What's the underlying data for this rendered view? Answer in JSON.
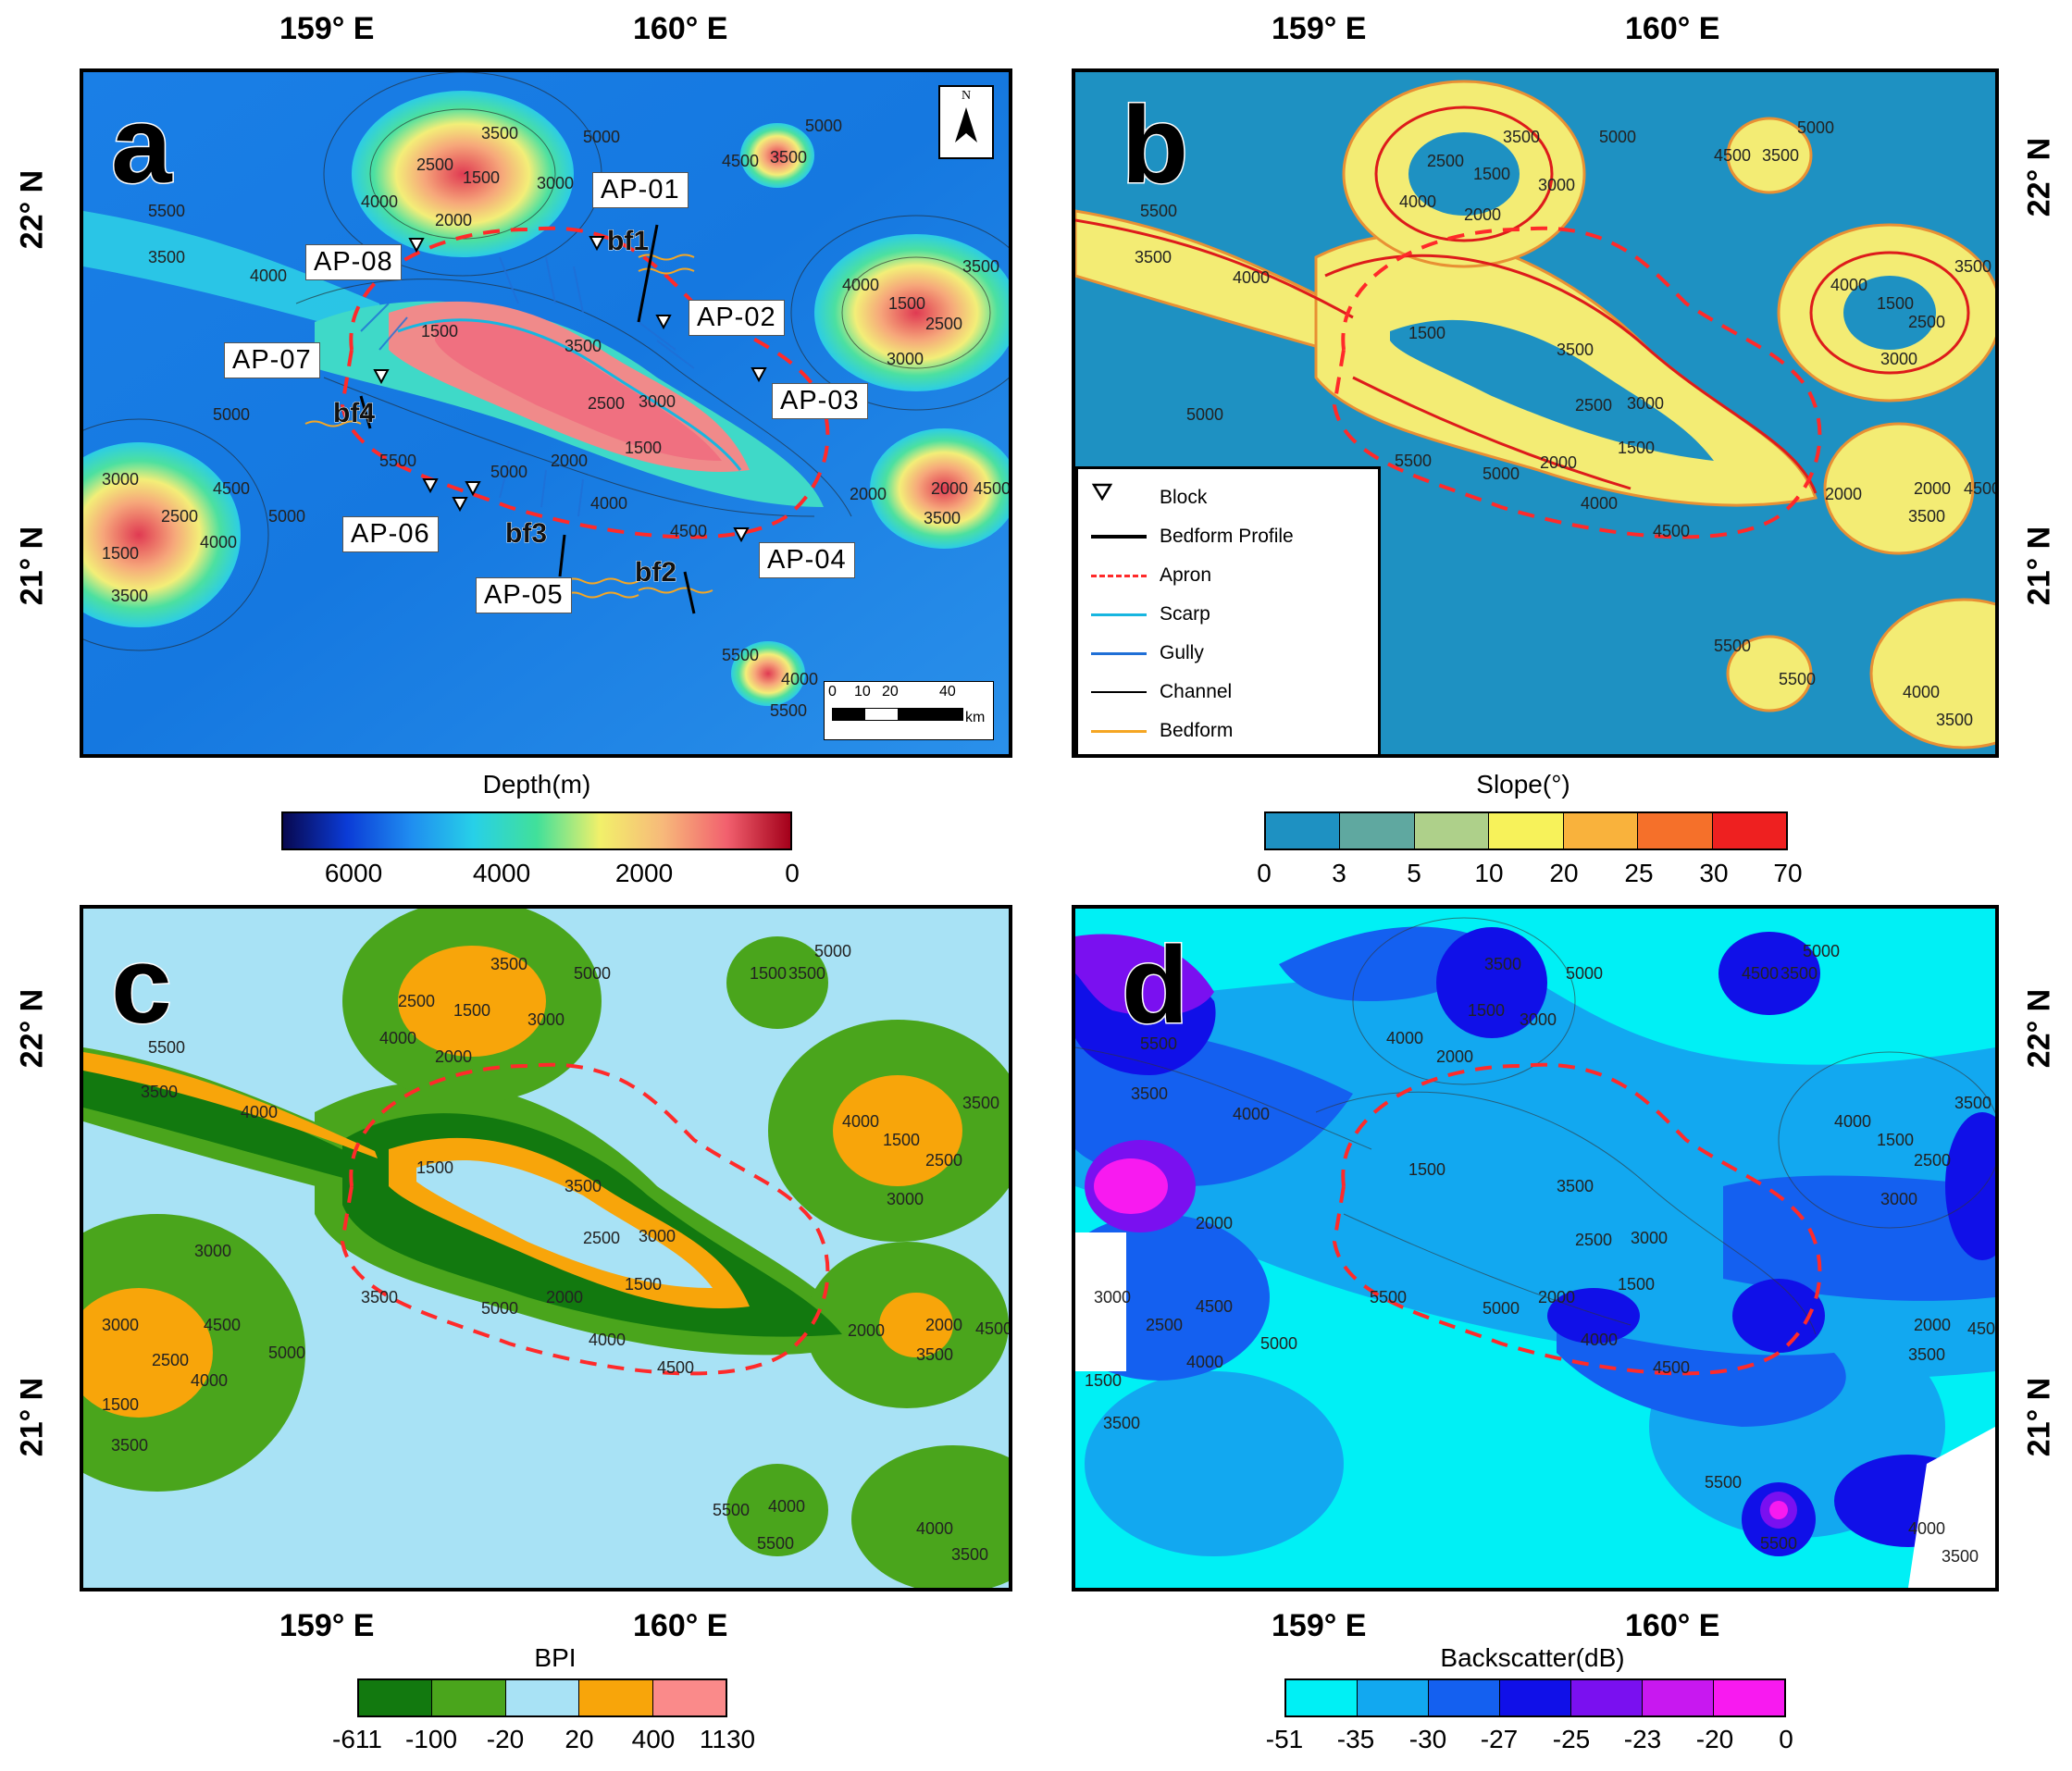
{
  "coords": {
    "lon1": "159° E",
    "lon2": "160° E",
    "lat1": "22° N",
    "lat2": "21° N"
  },
  "panels": {
    "a": {
      "label": "a"
    },
    "b": {
      "label": "b"
    },
    "c": {
      "label": "c"
    },
    "d": {
      "label": "d"
    }
  },
  "sites": {
    "ap01": "AP-01",
    "ap02": "AP-02",
    "ap03": "AP-03",
    "ap04": "AP-04",
    "ap05": "AP-05",
    "ap06": "AP-06",
    "ap07": "AP-07",
    "ap08": "AP-08"
  },
  "bedforms": {
    "bf1": "bf1",
    "bf2": "bf2",
    "bf3": "bf3",
    "bf4": "bf4"
  },
  "north_arrow": {
    "letter": "N"
  },
  "scale_bar": {
    "t0": "0",
    "t1": "10",
    "t2": "20",
    "t3": "40",
    "unit": "km"
  },
  "contours": {
    "c5500": "5500",
    "c5000": "5000",
    "c4500": "4500",
    "c4000": "4000",
    "c3500": "3500",
    "c3000": "3000",
    "c2500": "2500",
    "c2000": "2000",
    "c1500": "1500"
  },
  "legend": {
    "items": [
      {
        "label": "Block",
        "symbol": "triangle"
      },
      {
        "label": "Bedform Profile",
        "symbol": "thick-line",
        "color": "#000000"
      },
      {
        "label": "Apron",
        "symbol": "dashed-line",
        "color": "#ff2a2a"
      },
      {
        "label": "Scarp",
        "symbol": "line",
        "color": "#17b6e0"
      },
      {
        "label": "Gully",
        "symbol": "line",
        "color": "#1f6fd6"
      },
      {
        "label": "Channel",
        "symbol": "thin-line",
        "color": "#000000"
      },
      {
        "label": "Bedform",
        "symbol": "line",
        "color": "#f5a623"
      }
    ]
  },
  "colorbars": {
    "depth": {
      "title": "Depth(m)",
      "ticks": [
        "6000",
        "4000",
        "2000",
        "0"
      ],
      "colors": [
        "#08084f",
        "#0b3bd6",
        "#1f8cf0",
        "#27d0e8",
        "#41e09a",
        "#f2f06a",
        "#f7b87a",
        "#f2606e",
        "#a3001a"
      ]
    },
    "slope": {
      "title": "Slope(°)",
      "ticks": [
        "0",
        "3",
        "5",
        "10",
        "20",
        "25",
        "30",
        "70"
      ],
      "colors": [
        "#1e91c2",
        "#5fa8a0",
        "#aed08a",
        "#f7f25a",
        "#f9b23c",
        "#f5702a",
        "#ee2020"
      ]
    },
    "bpi": {
      "title": "BPI",
      "ticks": [
        "-611",
        "-100",
        "-20",
        "20",
        "400",
        "1130"
      ],
      "colors": [
        "#12790f",
        "#4aa51c",
        "#a8e2f5",
        "#f8a50a",
        "#fa8a8a"
      ]
    },
    "backscatter": {
      "title": "Backscatter(dB)",
      "ticks": [
        "-51",
        "-35",
        "-30",
        "-27",
        "-25",
        "-23",
        "-20",
        "0"
      ],
      "colors": [
        "#00f0f5",
        "#12a8f0",
        "#1460f0",
        "#1010e8",
        "#7a10f0",
        "#c818f0",
        "#f81af0"
      ]
    }
  }
}
